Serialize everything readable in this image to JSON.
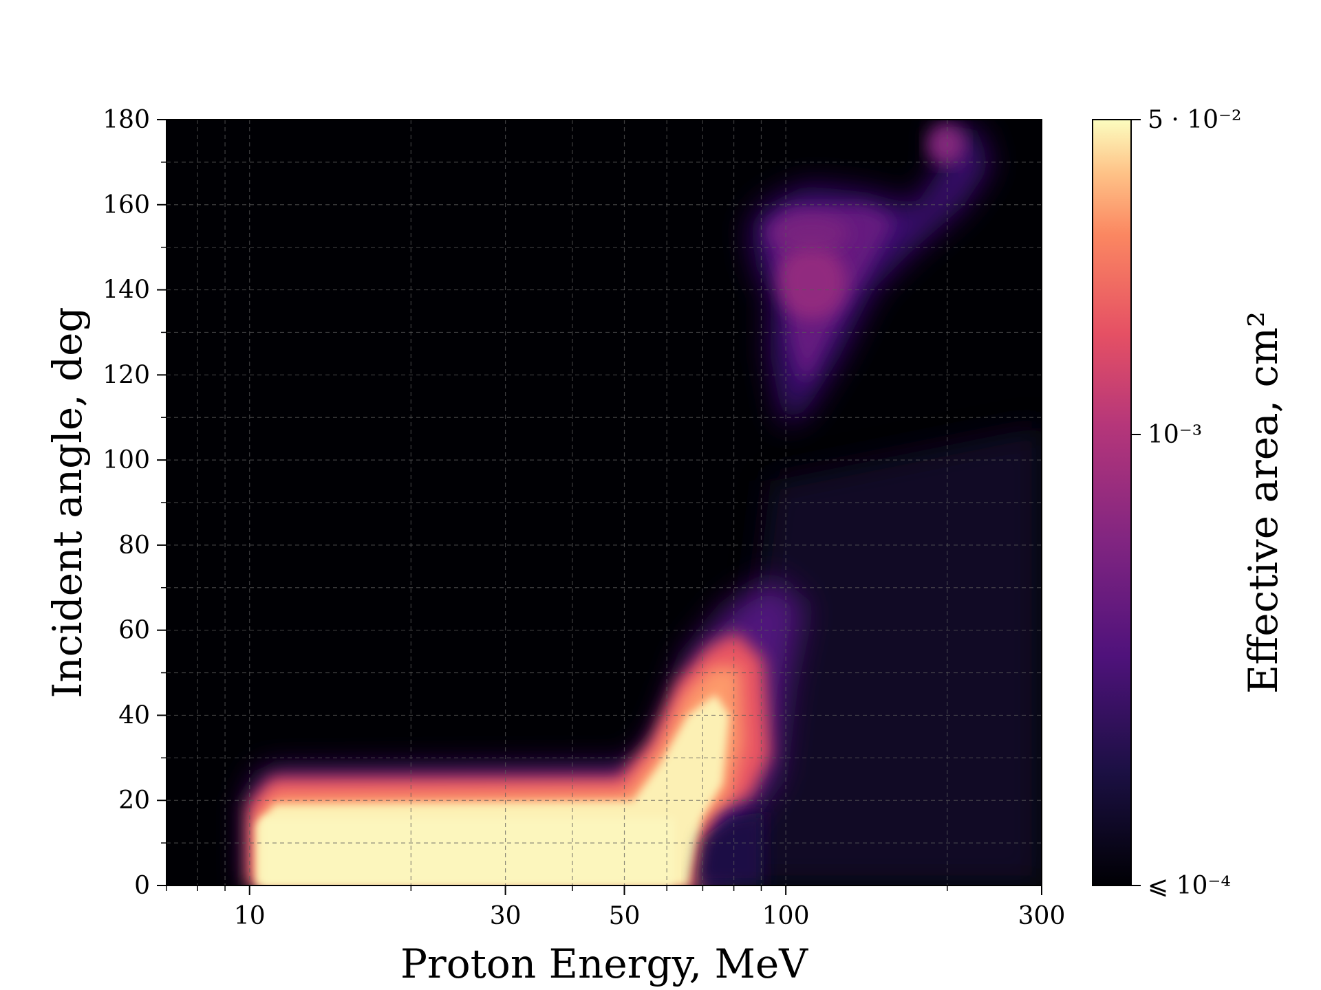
{
  "chart_data": {
    "type": "heatmap",
    "title": "",
    "xlabel": "Proton Energy, MeV",
    "ylabel": "Incident angle, deg",
    "xscale": "log",
    "xlim": [
      7,
      300
    ],
    "ylim": [
      0,
      180
    ],
    "x_ticks": [
      {
        "value": 10,
        "label": "10"
      },
      {
        "value": 30,
        "label": "30"
      },
      {
        "value": 50,
        "label": "50"
      },
      {
        "value": 100,
        "label": "100"
      },
      {
        "value": 300,
        "label": "300"
      }
    ],
    "y_ticks": [
      {
        "value": 0,
        "label": "0"
      },
      {
        "value": 20,
        "label": "20"
      },
      {
        "value": 40,
        "label": "40"
      },
      {
        "value": 60,
        "label": "60"
      },
      {
        "value": 80,
        "label": "80"
      },
      {
        "value": 100,
        "label": "100"
      },
      {
        "value": 120,
        "label": "120"
      },
      {
        "value": 140,
        "label": "140"
      },
      {
        "value": 160,
        "label": "160"
      },
      {
        "value": 180,
        "label": "180"
      }
    ],
    "grid": true,
    "colormap": "magma",
    "colorbar": {
      "label": "Effective area, cm²",
      "scale": "log",
      "range": [
        0.0001,
        0.05
      ],
      "ticks": [
        {
          "value": 0.05,
          "label": "5 · 10⁻²"
        },
        {
          "value": 0.001,
          "label": "10⁻³"
        },
        {
          "value": 0.0001,
          "label": "⩽ 10⁻⁴"
        }
      ]
    },
    "regions": [
      {
        "x_range": [
          10,
          68
        ],
        "y_range": [
          0,
          28
        ],
        "level": 0.05
      },
      {
        "x_range": [
          50,
          92
        ],
        "y_range": [
          20,
          60
        ],
        "level": 0.02
      },
      {
        "x_range": [
          85,
          175
        ],
        "y_range": [
          100,
          165
        ],
        "level": 0.0008
      },
      {
        "x_range": [
          165,
          230
        ],
        "y_range": [
          160,
          180
        ],
        "level": 0.001
      },
      {
        "x_range": [
          100,
          300
        ],
        "y_range": [
          0,
          100
        ],
        "level": 0.0002
      }
    ]
  }
}
